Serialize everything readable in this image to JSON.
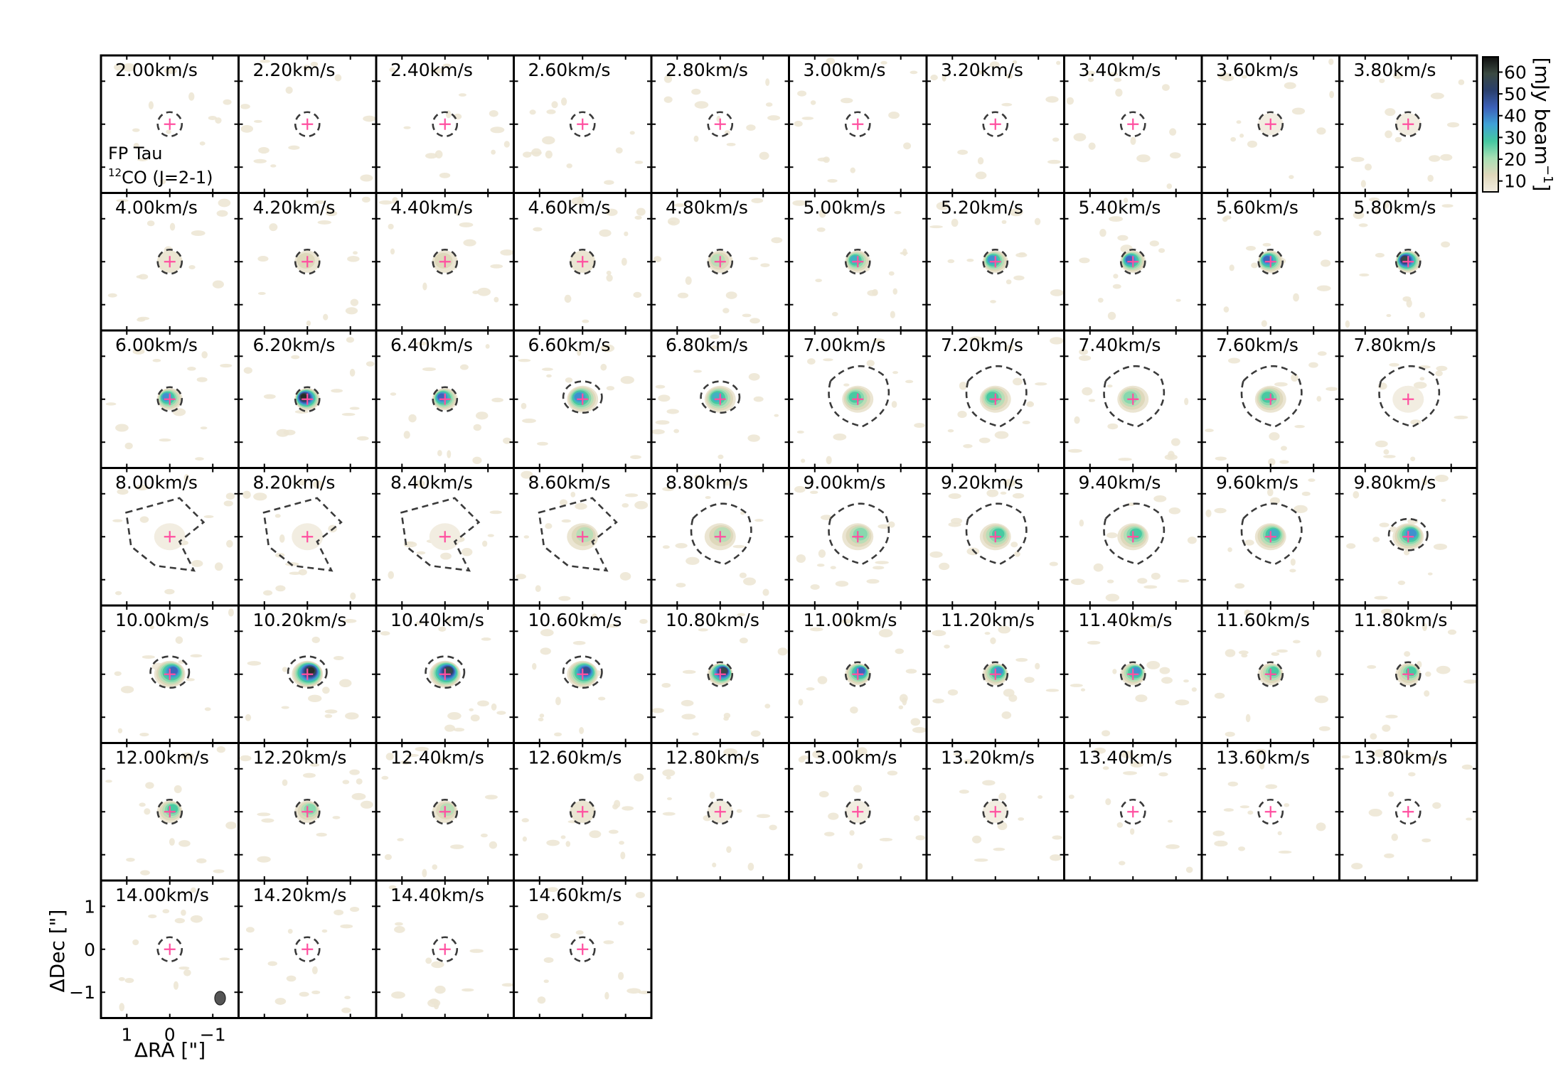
{
  "chart_data": {
    "type": "heatmap",
    "subtype": "channel-map",
    "target": "FP Tau",
    "line_prefix_sup": "12",
    "line_label": "CO (J=2-1)",
    "velocity_unit": "km/s",
    "channels": [
      {
        "v": "2.00",
        "peak": 0,
        "mask": "circle"
      },
      {
        "v": "2.20",
        "peak": 0,
        "mask": "circle"
      },
      {
        "v": "2.40",
        "peak": 0,
        "mask": "circle"
      },
      {
        "v": "2.60",
        "peak": 0,
        "mask": "circle"
      },
      {
        "v": "2.80",
        "peak": 0,
        "mask": "circle"
      },
      {
        "v": "3.00",
        "peak": 0,
        "mask": "circle"
      },
      {
        "v": "3.20",
        "peak": 0,
        "mask": "circle"
      },
      {
        "v": "3.40",
        "peak": 0,
        "mask": "circle"
      },
      {
        "v": "3.60",
        "peak": 5,
        "mask": "circle"
      },
      {
        "v": "3.80",
        "peak": 5,
        "mask": "circle"
      },
      {
        "v": "4.00",
        "peak": 10,
        "mask": "circle"
      },
      {
        "v": "4.20",
        "peak": 15,
        "mask": "circle"
      },
      {
        "v": "4.40",
        "peak": 15,
        "mask": "circle"
      },
      {
        "v": "4.60",
        "peak": 12,
        "mask": "circle"
      },
      {
        "v": "4.80",
        "peak": 22,
        "mask": "circle"
      },
      {
        "v": "5.00",
        "peak": 35,
        "mask": "circle"
      },
      {
        "v": "5.20",
        "peak": 40,
        "mask": "circle"
      },
      {
        "v": "5.40",
        "peak": 45,
        "mask": "circle"
      },
      {
        "v": "5.60",
        "peak": 45,
        "mask": "circle"
      },
      {
        "v": "5.80",
        "peak": 60,
        "mask": "circle"
      },
      {
        "v": "6.00",
        "peak": 42,
        "mask": "circle"
      },
      {
        "v": "6.20",
        "peak": 65,
        "mask": "circle"
      },
      {
        "v": "6.40",
        "peak": 45,
        "mask": "circle"
      },
      {
        "v": "6.60",
        "peak": 42,
        "mask": "oval"
      },
      {
        "v": "6.80",
        "peak": 35,
        "mask": "oval"
      },
      {
        "v": "7.00",
        "peak": 30,
        "mask": "blob"
      },
      {
        "v": "7.20",
        "peak": 32,
        "mask": "blob"
      },
      {
        "v": "7.40",
        "peak": 25,
        "mask": "blob"
      },
      {
        "v": "7.60",
        "peak": 30,
        "mask": "blob"
      },
      {
        "v": "7.80",
        "peak": 5,
        "mask": "blob"
      },
      {
        "v": "8.00",
        "peak": 3,
        "mask": "irregular"
      },
      {
        "v": "8.20",
        "peak": 3,
        "mask": "irregular"
      },
      {
        "v": "8.40",
        "peak": 3,
        "mask": "irregular"
      },
      {
        "v": "8.60",
        "peak": 18,
        "mask": "irregular"
      },
      {
        "v": "8.80",
        "peak": 20,
        "mask": "blob"
      },
      {
        "v": "9.00",
        "peak": 25,
        "mask": "blob"
      },
      {
        "v": "9.20",
        "peak": 28,
        "mask": "blob"
      },
      {
        "v": "9.40",
        "peak": 30,
        "mask": "blob"
      },
      {
        "v": "9.60",
        "peak": 35,
        "mask": "blob"
      },
      {
        "v": "9.80",
        "peak": 40,
        "mask": "oval"
      },
      {
        "v": "10.00",
        "peak": 45,
        "mask": "oval"
      },
      {
        "v": "10.20",
        "peak": 65,
        "mask": "oval"
      },
      {
        "v": "10.40",
        "peak": 62,
        "mask": "oval"
      },
      {
        "v": "10.60",
        "peak": 48,
        "mask": "oval"
      },
      {
        "v": "10.80",
        "peak": 60,
        "mask": "circle"
      },
      {
        "v": "11.00",
        "peak": 45,
        "mask": "circle"
      },
      {
        "v": "11.20",
        "peak": 42,
        "mask": "circle"
      },
      {
        "v": "11.40",
        "peak": 38,
        "mask": "circle"
      },
      {
        "v": "11.60",
        "peak": 30,
        "mask": "circle"
      },
      {
        "v": "11.80",
        "peak": 28,
        "mask": "circle"
      },
      {
        "v": "12.00",
        "peak": 28,
        "mask": "circle"
      },
      {
        "v": "12.20",
        "peak": 25,
        "mask": "circle"
      },
      {
        "v": "12.40",
        "peak": 22,
        "mask": "circle"
      },
      {
        "v": "12.60",
        "peak": 8,
        "mask": "circle"
      },
      {
        "v": "12.80",
        "peak": 6,
        "mask": "circle"
      },
      {
        "v": "13.00",
        "peak": 5,
        "mask": "circle"
      },
      {
        "v": "13.20",
        "peak": 4,
        "mask": "circle"
      },
      {
        "v": "13.40",
        "peak": 0,
        "mask": "circle"
      },
      {
        "v": "13.60",
        "peak": 0,
        "mask": "circle"
      },
      {
        "v": "13.80",
        "peak": 0,
        "mask": "circle"
      },
      {
        "v": "14.00",
        "peak": 0,
        "mask": "circle"
      },
      {
        "v": "14.20",
        "peak": 0,
        "mask": "circle"
      },
      {
        "v": "14.40",
        "peak": 0,
        "mask": "circle"
      },
      {
        "v": "14.60",
        "peak": 0,
        "mask": "circle"
      }
    ],
    "grid": {
      "columns": 10,
      "rows": 7
    },
    "xlabel": "ΔRA [\"]",
    "ylabel": "ΔDec [\"]",
    "xticks": [
      "1",
      "0",
      "−1"
    ],
    "xtick_values": [
      1,
      0,
      -1
    ],
    "yticks": [
      "1",
      "0",
      "−1"
    ],
    "ytick_values": [
      1,
      0,
      -1
    ],
    "axis_range_arcsec": [
      -1.6,
      1.6
    ],
    "colorbar": {
      "label": "[mJy beam",
      "label_sup": "−1",
      "label_end": "]",
      "ticks": [
        "10",
        "20",
        "30",
        "40",
        "50",
        "60"
      ],
      "tick_values": [
        10,
        20,
        30,
        40,
        50,
        60
      ],
      "range": [
        5,
        67
      ],
      "colormap": [
        "#f2ede1",
        "#e0d8bb",
        "#a8e0b4",
        "#45c8a0",
        "#3fa2d6",
        "#3c60b8",
        "#2a3f6d",
        "#3b4a42",
        "#0f0f0f"
      ]
    },
    "marker_color": "#ff4fa0",
    "mask_color": "#3a3a3a",
    "beam_color": "#555555"
  }
}
